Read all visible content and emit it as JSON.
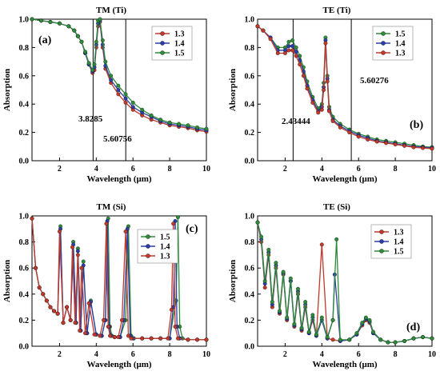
{
  "figure": {
    "xlabel": "Wavelength (μm)",
    "ylabel": "Absorption"
  },
  "chart_data": [
    {
      "type": "line",
      "title": "TM (Ti)",
      "tag": "(a)",
      "xlabel": "Wavelength (μm)",
      "ylabel": "Absorption",
      "xlim": [
        0.5,
        10
      ],
      "ylim": [
        0,
        1.0
      ],
      "xticks": [
        2,
        4,
        6,
        8,
        10
      ],
      "yticks": [
        0.0,
        0.2,
        0.4,
        0.6,
        0.8,
        1.0
      ],
      "legend": {
        "position": "top-right"
      },
      "vlines": [
        3.8285,
        5.60756
      ],
      "annotations": [
        {
          "text": "3.8285",
          "x": 3.75,
          "y": 0.25
        },
        {
          "text": "5.60756",
          "x": 5.5,
          "y": 0.13
        }
      ],
      "series": [
        {
          "name": "1.3",
          "color": "#c0392b",
          "x": [
            0.5,
            1.0,
            1.5,
            2.0,
            2.5,
            2.8,
            3.0,
            3.2,
            3.4,
            3.6,
            3.8,
            3.9,
            4.0,
            4.1,
            4.2,
            4.35,
            4.5,
            4.8,
            5.2,
            5.6,
            6.0,
            6.5,
            7.0,
            7.5,
            8.0,
            8.5,
            9.0,
            9.5,
            10.0
          ],
          "y": [
            1.0,
            0.99,
            0.98,
            0.97,
            0.95,
            0.92,
            0.88,
            0.84,
            0.76,
            0.68,
            0.62,
            0.64,
            0.8,
            0.95,
            0.98,
            0.8,
            0.65,
            0.55,
            0.47,
            0.41,
            0.36,
            0.32,
            0.29,
            0.27,
            0.25,
            0.24,
            0.23,
            0.215,
            0.205
          ]
        },
        {
          "name": "1.4",
          "color": "#2b3ea8",
          "x": [
            0.5,
            1.0,
            1.5,
            2.0,
            2.5,
            2.8,
            3.0,
            3.2,
            3.4,
            3.6,
            3.8,
            3.9,
            4.0,
            4.1,
            4.2,
            4.35,
            4.5,
            4.8,
            5.2,
            5.6,
            6.0,
            6.5,
            7.0,
            7.5,
            8.0,
            8.5,
            9.0,
            9.5,
            10.0
          ],
          "y": [
            1.0,
            0.99,
            0.98,
            0.97,
            0.95,
            0.92,
            0.88,
            0.84,
            0.76,
            0.68,
            0.63,
            0.66,
            0.82,
            0.97,
            0.99,
            0.82,
            0.67,
            0.57,
            0.5,
            0.44,
            0.38,
            0.34,
            0.31,
            0.28,
            0.26,
            0.25,
            0.24,
            0.225,
            0.215
          ]
        },
        {
          "name": "1.5",
          "color": "#2e8b3a",
          "x": [
            0.5,
            1.0,
            1.5,
            2.0,
            2.5,
            2.8,
            3.0,
            3.2,
            3.4,
            3.6,
            3.8,
            3.9,
            4.0,
            4.1,
            4.2,
            4.35,
            4.5,
            4.8,
            5.2,
            5.6,
            6.0,
            6.5,
            7.0,
            7.5,
            8.0,
            8.5,
            9.0,
            9.5,
            10.0
          ],
          "y": [
            1.0,
            0.99,
            0.98,
            0.97,
            0.95,
            0.92,
            0.88,
            0.84,
            0.77,
            0.69,
            0.64,
            0.68,
            0.84,
            0.99,
            1.0,
            0.85,
            0.7,
            0.6,
            0.53,
            0.47,
            0.41,
            0.36,
            0.32,
            0.29,
            0.27,
            0.26,
            0.25,
            0.235,
            0.225
          ]
        }
      ]
    },
    {
      "type": "line",
      "title": "TE (Ti)",
      "tag": "(b)",
      "xlabel": "Wavelength (μm)",
      "ylabel": "Absorption",
      "xlim": [
        0.5,
        10
      ],
      "ylim": [
        0,
        1.0
      ],
      "xticks": [
        2,
        4,
        6,
        8,
        10
      ],
      "yticks": [
        0.0,
        0.2,
        0.4,
        0.6,
        0.8,
        1.0
      ],
      "legend": {
        "position": "top-right"
      },
      "vlines": [
        2.43444,
        5.60276
      ],
      "annotations": [
        {
          "text": "5.60276",
          "x": 5.6,
          "y": 0.55
        },
        {
          "text": "2.43444",
          "x": 2.2,
          "y": 0.28
        }
      ],
      "series": [
        {
          "name": "1.5",
          "color": "#2e8b3a",
          "x": [
            0.5,
            0.8,
            1.2,
            1.6,
            2.0,
            2.2,
            2.4,
            2.6,
            2.8,
            3.0,
            3.2,
            3.5,
            3.8,
            4.0,
            4.1,
            4.2,
            4.3,
            4.4,
            4.6,
            5.0,
            5.5,
            6.0,
            6.5,
            7.0,
            7.5,
            8.0,
            8.5,
            9.0,
            9.5,
            10.0
          ],
          "y": [
            0.95,
            0.92,
            0.87,
            0.8,
            0.8,
            0.84,
            0.85,
            0.8,
            0.74,
            0.66,
            0.56,
            0.45,
            0.37,
            0.4,
            0.55,
            0.87,
            0.6,
            0.38,
            0.31,
            0.26,
            0.22,
            0.19,
            0.17,
            0.15,
            0.14,
            0.13,
            0.12,
            0.11,
            0.1,
            0.095
          ]
        },
        {
          "name": "1.4",
          "color": "#2b3ea8",
          "x": [
            0.5,
            0.8,
            1.2,
            1.6,
            2.0,
            2.2,
            2.4,
            2.6,
            2.8,
            3.0,
            3.2,
            3.5,
            3.8,
            4.0,
            4.1,
            4.2,
            4.3,
            4.4,
            4.6,
            5.0,
            5.5,
            6.0,
            6.5,
            7.0,
            7.5,
            8.0,
            8.5,
            9.0,
            9.5,
            10.0
          ],
          "y": [
            0.95,
            0.92,
            0.87,
            0.78,
            0.78,
            0.81,
            0.81,
            0.77,
            0.71,
            0.63,
            0.53,
            0.43,
            0.35,
            0.38,
            0.52,
            0.85,
            0.58,
            0.36,
            0.29,
            0.245,
            0.21,
            0.18,
            0.16,
            0.14,
            0.13,
            0.12,
            0.11,
            0.1,
            0.095,
            0.09
          ]
        },
        {
          "name": "1.3",
          "color": "#c0392b",
          "x": [
            0.5,
            0.8,
            1.2,
            1.6,
            2.0,
            2.2,
            2.4,
            2.6,
            2.8,
            3.0,
            3.2,
            3.5,
            3.8,
            4.0,
            4.1,
            4.2,
            4.3,
            4.4,
            4.6,
            5.0,
            5.5,
            6.0,
            6.5,
            7.0,
            7.5,
            8.0,
            8.5,
            9.0,
            9.5,
            10.0
          ],
          "y": [
            0.95,
            0.92,
            0.86,
            0.76,
            0.76,
            0.78,
            0.78,
            0.74,
            0.68,
            0.6,
            0.51,
            0.41,
            0.34,
            0.36,
            0.5,
            0.83,
            0.56,
            0.35,
            0.28,
            0.235,
            0.2,
            0.17,
            0.15,
            0.135,
            0.125,
            0.115,
            0.105,
            0.095,
            0.09,
            0.085
          ]
        }
      ]
    },
    {
      "type": "line",
      "title": "TM (Si)",
      "tag": "(c)",
      "xlabel": "Wavelength (μm)",
      "ylabel": "Absorption",
      "xlim": [
        0.5,
        10
      ],
      "ylim": [
        0,
        1.0
      ],
      "xticks": [
        2,
        4,
        6,
        8,
        10
      ],
      "yticks": [
        0.0,
        0.2,
        0.4,
        0.6,
        0.8,
        1.0
      ],
      "legend": {
        "position": "top-right"
      },
      "series": [
        {
          "name": "1.5",
          "color": "#2e8b3a",
          "x": [
            0.5,
            0.7,
            0.9,
            1.1,
            1.3,
            1.5,
            1.7,
            1.9,
            2.05,
            2.2,
            2.4,
            2.6,
            2.75,
            2.9,
            3.0,
            3.15,
            3.3,
            3.5,
            3.7,
            4.0,
            4.3,
            4.5,
            4.65,
            4.75,
            4.85,
            5.0,
            5.3,
            5.6,
            5.75,
            5.9,
            6.05,
            6.5,
            7.0,
            7.5,
            8.0,
            8.35,
            8.45,
            8.55,
            8.7,
            9.0,
            9.5,
            10.0
          ],
          "y": [
            0.98,
            0.6,
            0.45,
            0.4,
            0.35,
            0.3,
            0.27,
            0.25,
            0.92,
            0.18,
            0.3,
            0.2,
            0.8,
            0.18,
            0.75,
            0.12,
            0.65,
            0.1,
            0.35,
            0.09,
            0.08,
            0.2,
            0.98,
            0.15,
            0.08,
            0.07,
            0.07,
            0.2,
            0.92,
            0.08,
            0.06,
            0.06,
            0.06,
            0.06,
            0.06,
            0.35,
            0.99,
            0.15,
            0.06,
            0.05,
            0.05,
            0.05
          ]
        },
        {
          "name": "1.4",
          "color": "#2b3ea8",
          "x": [
            0.5,
            0.7,
            0.9,
            1.1,
            1.3,
            1.5,
            1.7,
            1.9,
            2.05,
            2.2,
            2.4,
            2.6,
            2.75,
            2.9,
            3.0,
            3.15,
            3.3,
            3.5,
            3.7,
            4.0,
            4.3,
            4.5,
            4.6,
            4.7,
            4.8,
            5.0,
            5.3,
            5.5,
            5.7,
            5.85,
            6.0,
            6.5,
            7.0,
            7.5,
            8.0,
            8.2,
            8.3,
            8.4,
            8.55,
            9.0,
            9.5,
            10.0
          ],
          "y": [
            0.98,
            0.6,
            0.45,
            0.4,
            0.35,
            0.3,
            0.27,
            0.25,
            0.9,
            0.18,
            0.3,
            0.2,
            0.78,
            0.18,
            0.73,
            0.12,
            0.62,
            0.1,
            0.34,
            0.09,
            0.08,
            0.2,
            0.96,
            0.15,
            0.08,
            0.07,
            0.07,
            0.2,
            0.9,
            0.08,
            0.06,
            0.06,
            0.06,
            0.06,
            0.06,
            0.3,
            0.96,
            0.15,
            0.06,
            0.05,
            0.05,
            0.05
          ]
        },
        {
          "name": "1.3",
          "color": "#c0392b",
          "x": [
            0.5,
            0.7,
            0.9,
            1.1,
            1.3,
            1.5,
            1.7,
            1.9,
            2.0,
            2.2,
            2.4,
            2.6,
            2.7,
            2.85,
            3.0,
            3.1,
            3.2,
            3.4,
            3.6,
            3.9,
            4.2,
            4.4,
            4.55,
            4.65,
            4.75,
            5.0,
            5.2,
            5.4,
            5.6,
            5.75,
            5.9,
            6.5,
            7.0,
            7.5,
            7.9,
            8.1,
            8.2,
            8.3,
            8.45,
            9.0,
            9.5,
            10.0
          ],
          "y": [
            0.98,
            0.6,
            0.45,
            0.4,
            0.35,
            0.3,
            0.27,
            0.25,
            0.88,
            0.18,
            0.3,
            0.2,
            0.76,
            0.18,
            0.7,
            0.12,
            0.6,
            0.1,
            0.33,
            0.09,
            0.08,
            0.2,
            0.94,
            0.15,
            0.08,
            0.07,
            0.07,
            0.2,
            0.88,
            0.08,
            0.06,
            0.06,
            0.06,
            0.06,
            0.06,
            0.28,
            0.94,
            0.15,
            0.06,
            0.05,
            0.05,
            0.05
          ]
        }
      ]
    },
    {
      "type": "line",
      "title": "TE (Si)",
      "tag": "(d)",
      "xlabel": "Wavelength (μm)",
      "ylabel": "Absorption",
      "xlim": [
        0.5,
        10
      ],
      "ylim": [
        0,
        1.0
      ],
      "xticks": [
        2,
        4,
        6,
        8,
        10
      ],
      "yticks": [
        0.0,
        0.2,
        0.4,
        0.6,
        0.8,
        1.0
      ],
      "legend": {
        "position": "top-right"
      },
      "series": [
        {
          "name": "1.3",
          "color": "#c0392b",
          "x": [
            0.5,
            0.7,
            0.9,
            1.1,
            1.3,
            1.5,
            1.7,
            1.9,
            2.1,
            2.3,
            2.5,
            2.7,
            2.9,
            3.1,
            3.3,
            3.5,
            3.7,
            4.0,
            4.3,
            4.6,
            5.0,
            5.5,
            5.9,
            6.2,
            6.4,
            6.6,
            6.8,
            7.2,
            7.6,
            8.0,
            8.5,
            9.0,
            9.5,
            10.0
          ],
          "y": [
            0.95,
            0.8,
            0.45,
            0.7,
            0.3,
            0.6,
            0.25,
            0.55,
            0.2,
            0.5,
            0.15,
            0.4,
            0.12,
            0.3,
            0.1,
            0.2,
            0.08,
            0.78,
            0.06,
            0.05,
            0.04,
            0.05,
            0.09,
            0.16,
            0.2,
            0.18,
            0.1,
            0.05,
            0.03,
            0.03,
            0.04,
            0.06,
            0.07,
            0.06
          ]
        },
        {
          "name": "1.4",
          "color": "#2b3ea8",
          "x": [
            0.5,
            0.7,
            0.9,
            1.1,
            1.3,
            1.5,
            1.7,
            1.9,
            2.1,
            2.3,
            2.5,
            2.7,
            2.9,
            3.1,
            3.3,
            3.5,
            3.7,
            4.0,
            4.3,
            4.6,
            4.7,
            5.0,
            5.5,
            5.9,
            6.2,
            6.4,
            6.6,
            6.8,
            7.2,
            7.6,
            8.0,
            8.5,
            9.0,
            9.5,
            10.0
          ],
          "y": [
            0.95,
            0.82,
            0.48,
            0.72,
            0.32,
            0.62,
            0.26,
            0.56,
            0.21,
            0.5,
            0.16,
            0.42,
            0.13,
            0.32,
            0.1,
            0.22,
            0.08,
            0.2,
            0.06,
            0.2,
            0.55,
            0.04,
            0.05,
            0.09,
            0.17,
            0.21,
            0.19,
            0.1,
            0.05,
            0.03,
            0.03,
            0.04,
            0.06,
            0.07,
            0.06
          ]
        },
        {
          "name": "1.5",
          "color": "#2e8b3a",
          "x": [
            0.5,
            0.7,
            0.9,
            1.1,
            1.3,
            1.5,
            1.7,
            1.9,
            2.1,
            2.3,
            2.5,
            2.7,
            2.9,
            3.1,
            3.3,
            3.5,
            3.7,
            4.0,
            4.3,
            4.6,
            4.8,
            5.0,
            5.5,
            5.9,
            6.2,
            6.4,
            6.6,
            6.8,
            7.2,
            7.6,
            8.0,
            8.5,
            9.0,
            9.5,
            10.0
          ],
          "y": [
            0.95,
            0.84,
            0.5,
            0.74,
            0.34,
            0.64,
            0.27,
            0.57,
            0.22,
            0.52,
            0.17,
            0.44,
            0.14,
            0.34,
            0.11,
            0.24,
            0.09,
            0.22,
            0.07,
            0.2,
            0.82,
            0.05,
            0.05,
            0.1,
            0.18,
            0.22,
            0.2,
            0.11,
            0.05,
            0.03,
            0.03,
            0.04,
            0.06,
            0.07,
            0.06
          ]
        }
      ]
    }
  ]
}
